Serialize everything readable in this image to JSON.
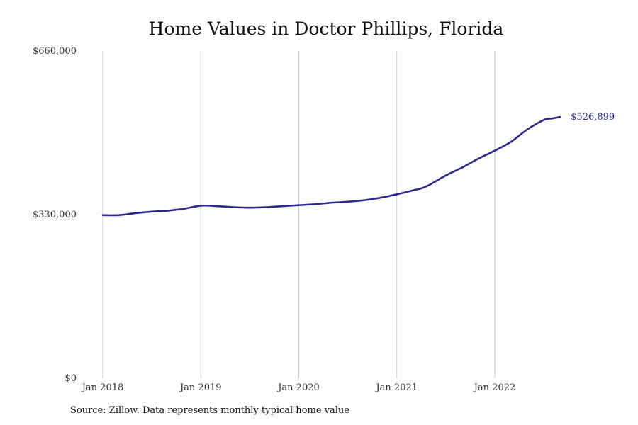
{
  "chart_data": {
    "type": "line",
    "title": "Home Values in Doctor Phillips, Florida",
    "xlabel": "",
    "ylabel": "",
    "ylim": [
      0,
      660000
    ],
    "yticks": [
      {
        "value": 0,
        "label": "$0"
      },
      {
        "value": 330000,
        "label": "$330,000"
      },
      {
        "value": 660000,
        "label": "$660,000"
      }
    ],
    "xticks": [
      {
        "value": "2018-01",
        "label": "Jan 2018"
      },
      {
        "value": "2019-01",
        "label": "Jan 2019"
      },
      {
        "value": "2020-01",
        "label": "Jan 2020"
      },
      {
        "value": "2021-01",
        "label": "Jan 2021"
      },
      {
        "value": "2022-01",
        "label": "Jan 2022"
      }
    ],
    "grid": "vertical",
    "line_color": "#2e2a8c",
    "end_label": "$526,899",
    "series": [
      {
        "x": [
          "2018-01",
          "2018-03",
          "2018-05",
          "2018-07",
          "2018-09",
          "2018-11",
          "2019-01",
          "2019-03",
          "2019-05",
          "2019-07",
          "2019-09",
          "2019-11",
          "2020-01",
          "2020-03",
          "2020-05",
          "2020-07",
          "2020-09",
          "2020-11",
          "2021-01",
          "2021-03",
          "2021-04",
          "2021-05",
          "2021-07",
          "2021-09",
          "2021-11",
          "2022-01",
          "2022-03",
          "2022-05",
          "2022-07",
          "2022-08",
          "2022-09"
        ],
        "values": [
          329000,
          329000,
          333000,
          336000,
          338000,
          342000,
          348000,
          347000,
          345000,
          344000,
          345000,
          347000,
          349000,
          351000,
          354000,
          356000,
          359000,
          364000,
          371000,
          379000,
          383000,
          390000,
          409000,
          425000,
          443000,
          459000,
          477000,
          502000,
          521000,
          524000,
          526899
        ]
      }
    ]
  },
  "source_note": "Source: Zillow. Data represents monthly typical home value"
}
